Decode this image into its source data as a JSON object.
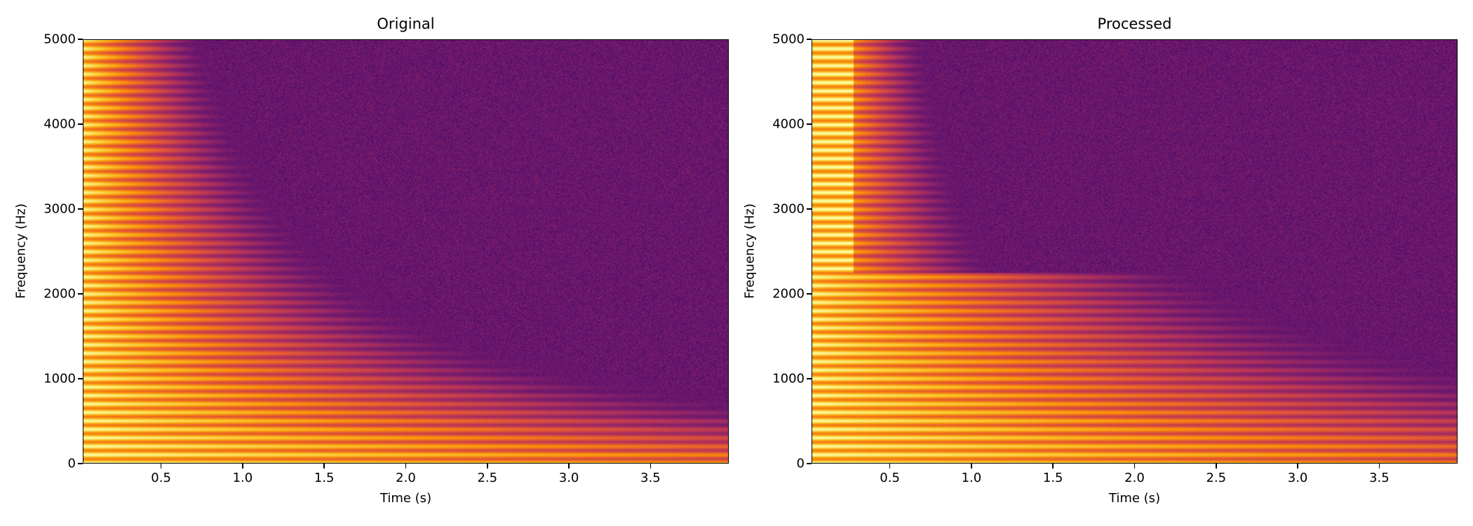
{
  "chart_data": [
    {
      "type": "heatmap",
      "title": "Original",
      "xlabel": "Time (s)",
      "ylabel": "Frequency (Hz)",
      "xlim": [
        0.02,
        3.98
      ],
      "ylim": [
        0,
        5000
      ],
      "xticks": [
        "0.5",
        "1.0",
        "1.5",
        "2.0",
        "2.5",
        "3.0",
        "3.5"
      ],
      "yticks": [
        "0",
        "1000",
        "2000",
        "3000",
        "4000",
        "5000"
      ],
      "colormap": "inferno",
      "grid": false
    },
    {
      "type": "heatmap",
      "title": "Processed",
      "xlabel": "Time (s)",
      "ylabel": "Frequency (Hz)",
      "xlim": [
        0.02,
        3.98
      ],
      "ylim": [
        0,
        5000
      ],
      "xticks": [
        "0.5",
        "1.0",
        "1.5",
        "2.0",
        "2.5",
        "3.0",
        "3.5"
      ],
      "yticks": [
        "0",
        "1000",
        "2000",
        "3000",
        "4000",
        "5000"
      ],
      "colormap": "inferno",
      "grid": false
    }
  ]
}
